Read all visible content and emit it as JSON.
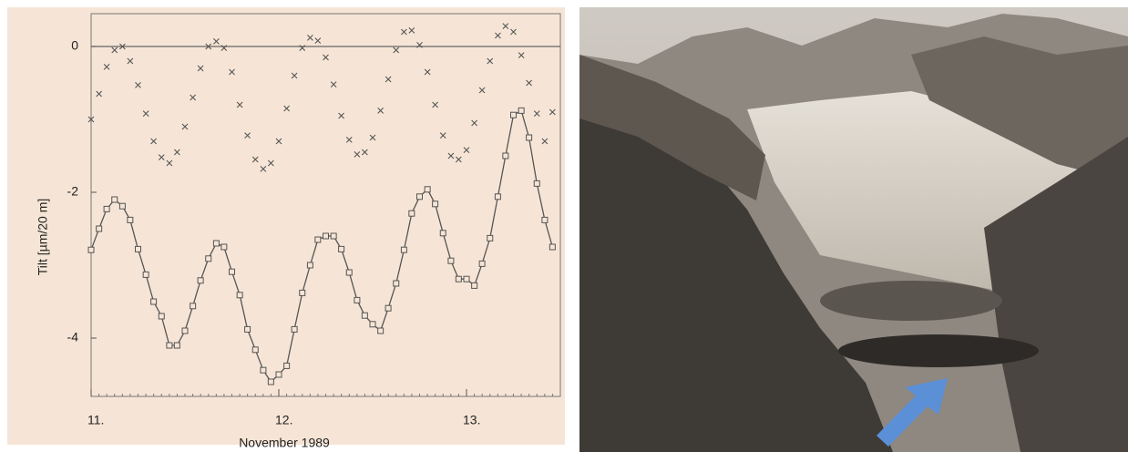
{
  "chart_data": {
    "type": "line",
    "ylabel": "Tilt [µm/20 m]",
    "xlabel": "November 1989",
    "x": [
      11.0,
      11.042,
      11.083,
      11.125,
      11.167,
      11.208,
      11.25,
      11.292,
      11.333,
      11.375,
      11.417,
      11.458,
      11.5,
      11.542,
      11.583,
      11.625,
      11.667,
      11.708,
      11.75,
      11.792,
      11.833,
      11.875,
      11.917,
      11.958,
      12.0,
      12.042,
      12.083,
      12.125,
      12.167,
      12.208,
      12.25,
      12.292,
      12.333,
      12.375,
      12.417,
      12.458,
      12.5,
      12.542,
      12.583,
      12.625,
      12.667,
      12.708,
      12.75,
      12.792,
      12.833,
      12.875,
      12.917,
      12.958,
      13.0,
      13.042,
      13.083,
      13.125,
      13.167,
      13.208,
      13.25,
      13.292,
      13.333,
      13.375,
      13.417,
      13.458
    ],
    "series": [
      {
        "marker": "x",
        "line": false,
        "color": "#555555",
        "values": [
          -1.0,
          -0.65,
          -0.28,
          -0.05,
          0,
          -0.2,
          -0.53,
          -0.92,
          -1.3,
          -1.52,
          -1.6,
          -1.45,
          -1.1,
          -0.7,
          -0.3,
          0,
          0.07,
          -0.02,
          -0.35,
          -0.8,
          -1.22,
          -1.55,
          -1.68,
          -1.6,
          -1.3,
          -0.85,
          -0.4,
          -0.02,
          0.12,
          0.08,
          -0.15,
          -0.52,
          -0.95,
          -1.28,
          -1.48,
          -1.45,
          -1.25,
          -0.88,
          -0.45,
          -0.05,
          0.2,
          0.22,
          0.02,
          -0.35,
          -0.8,
          -1.22,
          -1.5,
          -1.55,
          -1.42,
          -1.05,
          -0.6,
          -0.2,
          0.15,
          0.28,
          0.2,
          -0.12,
          -0.5,
          -0.92,
          -1.3,
          -0.9
        ]
      },
      {
        "marker": "square",
        "line": true,
        "color": "#555555",
        "values": [
          -2.79,
          -2.5,
          -2.23,
          -2.1,
          -2.19,
          -2.38,
          -2.78,
          -3.13,
          -3.5,
          -3.7,
          -4.1,
          -4.1,
          -3.9,
          -3.56,
          -3.21,
          -2.91,
          -2.7,
          -2.75,
          -3.09,
          -3.41,
          -3.88,
          -4.16,
          -4.44,
          -4.6,
          -4.5,
          -4.38,
          -3.88,
          -3.38,
          -3.0,
          -2.65,
          -2.6,
          -2.6,
          -2.78,
          -3.1,
          -3.48,
          -3.69,
          -3.81,
          -3.9,
          -3.59,
          -3.25,
          -2.79,
          -2.29,
          -2.06,
          -1.96,
          -2.16,
          -2.56,
          -2.94,
          -3.19,
          -3.19,
          -3.28,
          -2.98,
          -2.63,
          -2.06,
          -1.5,
          -0.94,
          -0.88,
          -1.25,
          -1.88,
          -2.38,
          -2.75
        ]
      }
    ],
    "xlim": [
      11,
      13.5
    ],
    "xticks": [
      {
        "value": 11,
        "label": "11."
      },
      {
        "value": 12,
        "label": "12."
      },
      {
        "value": 13,
        "label": "13."
      }
    ],
    "ylim": [
      -4.8,
      0.45
    ],
    "yticks": [
      0,
      -2,
      -4
    ],
    "zero_line": true
  }
}
